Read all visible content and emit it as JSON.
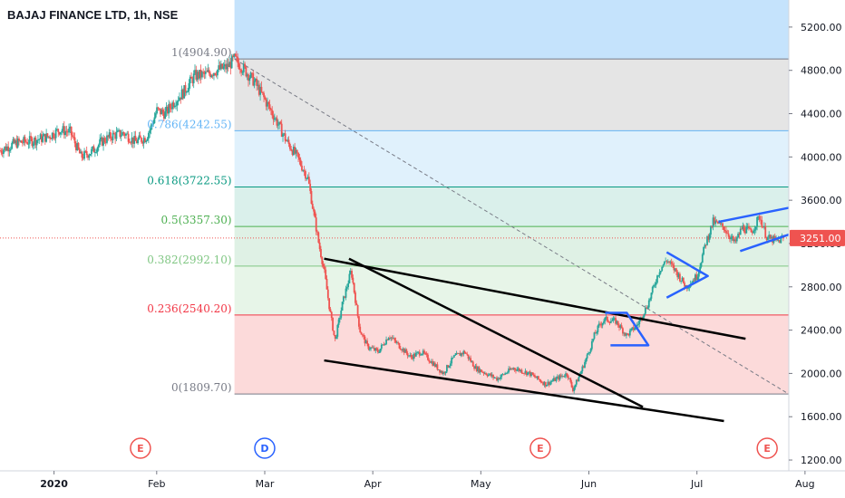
{
  "symbol_title": "BAJAJ FINANCE LTD, 1h, NSE",
  "colors": {
    "candle_up": "#26a69a",
    "candle_down": "#ef5350",
    "pattern_blue": "#2962ff",
    "trendline": "#000000",
    "price_line": "#ef5350",
    "price_badge": "#ef5350"
  },
  "chart_data": {
    "type": "candlestick",
    "title": "BAJAJ FINANCE LTD, 1h, NSE",
    "ylim": [
      1100,
      5450
    ],
    "y_ticks": [
      "5200.00",
      "4800.00",
      "4400.00",
      "4000.00",
      "3600.00",
      "3200.00",
      "2800.00",
      "2400.00",
      "2000.00",
      "1600.00",
      "1200.00"
    ],
    "x_ticks": [
      "2020",
      "Feb",
      "Mar",
      "Apr",
      "May",
      "Jun",
      "Jul",
      "Aug"
    ],
    "x_tick_positions": [
      0.05,
      1.0,
      2.0,
      3.0,
      4.0,
      5.0,
      6.0,
      7.0
    ],
    "xlim": [
      -0.45,
      6.85
    ],
    "current_price": {
      "value": 3251,
      "label": "3251.00"
    },
    "price_path": [
      [
        -0.45,
        4060
      ],
      [
        -0.3,
        4130
      ],
      [
        -0.15,
        4150
      ],
      [
        0.0,
        4190
      ],
      [
        0.1,
        4250
      ],
      [
        0.2,
        4230
      ],
      [
        0.3,
        4000
      ],
      [
        0.4,
        4050
      ],
      [
        0.5,
        4150
      ],
      [
        0.6,
        4200
      ],
      [
        0.7,
        4220
      ],
      [
        0.8,
        4140
      ],
      [
        0.9,
        4180
      ],
      [
        0.95,
        4280
      ],
      [
        1.0,
        4430
      ],
      [
        1.08,
        4400
      ],
      [
        1.15,
        4500
      ],
      [
        1.25,
        4600
      ],
      [
        1.35,
        4750
      ],
      [
        1.45,
        4760
      ],
      [
        1.55,
        4800
      ],
      [
        1.65,
        4830
      ],
      [
        1.72,
        4905
      ],
      [
        1.8,
        4820
      ],
      [
        1.9,
        4700
      ],
      [
        2.0,
        4530
      ],
      [
        2.1,
        4350
      ],
      [
        2.2,
        4150
      ],
      [
        2.3,
        4000
      ],
      [
        2.4,
        3800
      ],
      [
        2.45,
        3500
      ],
      [
        2.5,
        3200
      ],
      [
        2.55,
        2950
      ],
      [
        2.6,
        2600
      ],
      [
        2.65,
        2300
      ],
      [
        2.72,
        2650
      ],
      [
        2.8,
        2950
      ],
      [
        2.88,
        2400
      ],
      [
        2.95,
        2250
      ],
      [
        3.05,
        2200
      ],
      [
        3.15,
        2350
      ],
      [
        3.25,
        2250
      ],
      [
        3.35,
        2150
      ],
      [
        3.45,
        2200
      ],
      [
        3.55,
        2100
      ],
      [
        3.65,
        2000
      ],
      [
        3.75,
        2150
      ],
      [
        3.85,
        2200
      ],
      [
        3.95,
        2050
      ],
      [
        4.05,
        2000
      ],
      [
        4.15,
        1950
      ],
      [
        4.3,
        2050
      ],
      [
        4.45,
        2000
      ],
      [
        4.6,
        1900
      ],
      [
        4.7,
        1950
      ],
      [
        4.8,
        2000
      ],
      [
        4.85,
        1850
      ],
      [
        4.9,
        1950
      ],
      [
        5.0,
        2200
      ],
      [
        5.05,
        2350
      ],
      [
        5.1,
        2450
      ],
      [
        5.15,
        2500
      ],
      [
        5.25,
        2480
      ],
      [
        5.35,
        2350
      ],
      [
        5.45,
        2450
      ],
      [
        5.55,
        2650
      ],
      [
        5.6,
        2800
      ],
      [
        5.65,
        2950
      ],
      [
        5.72,
        3050
      ],
      [
        5.8,
        2950
      ],
      [
        5.9,
        2800
      ],
      [
        6.0,
        2900
      ],
      [
        6.08,
        3200
      ],
      [
        6.15,
        3400
      ],
      [
        6.25,
        3350
      ],
      [
        6.35,
        3200
      ],
      [
        6.42,
        3350
      ],
      [
        6.5,
        3300
      ],
      [
        6.58,
        3450
      ],
      [
        6.65,
        3250
      ],
      [
        6.75,
        3220
      ],
      [
        6.8,
        3251
      ]
    ],
    "fibonacci": {
      "levels": [
        {
          "label": "1(4904.90)",
          "value": 4904.9,
          "color": "#787b86"
        },
        {
          "label": "0.786(4242.55)",
          "value": 4242.55,
          "color": "#64b5f6"
        },
        {
          "label": "0.618(3722.55)",
          "value": 3722.55,
          "color": "#089981"
        },
        {
          "label": "0.5(3357.30)",
          "value": 3357.3,
          "color": "#4caf50"
        },
        {
          "label": "0.382(2992.10)",
          "value": 2992.1,
          "color": "#81c784"
        },
        {
          "label": "0.236(2540.20)",
          "value": 2540.2,
          "color": "#f23645"
        },
        {
          "label": "0(1809.70)",
          "value": 1809.7,
          "color": "#787b86"
        }
      ],
      "x_range": [
        1.72,
        6.85
      ],
      "bands": [
        {
          "from": 4904.9,
          "to": 5450,
          "color": "#bbdefb"
        },
        {
          "from": 4242.55,
          "to": 4904.9,
          "color": "#e0e0e0"
        },
        {
          "from": 3722.55,
          "to": 4242.55,
          "color": "#dbeefc"
        },
        {
          "from": 3357.3,
          "to": 3722.55,
          "color": "#d3ede8"
        },
        {
          "from": 2992.1,
          "to": 3357.3,
          "color": "#d9efe0"
        },
        {
          "from": 2540.2,
          "to": 2992.1,
          "color": "#e3f3e4"
        },
        {
          "from": 1809.7,
          "to": 2540.2,
          "color": "#fbd3d4"
        }
      ],
      "trend_line": [
        [
          1.72,
          4904.9
        ],
        [
          6.85,
          1809.7
        ]
      ]
    },
    "trendlines_black": [
      [
        [
          2.55,
          3060
        ],
        [
          6.45,
          2320
        ]
      ],
      [
        [
          2.78,
          3060
        ],
        [
          5.5,
          1690
        ]
      ],
      [
        [
          2.55,
          2120
        ],
        [
          6.25,
          1560
        ]
      ]
    ],
    "patterns_blue": [
      [
        [
          5.15,
          2560
        ],
        [
          5.35,
          2560
        ],
        [
          5.55,
          2260
        ],
        [
          5.2,
          2260
        ]
      ],
      [
        [
          5.72,
          3120
        ],
        [
          6.1,
          2900
        ],
        [
          5.72,
          2700
        ]
      ],
      [
        [
          6.2,
          3400
        ],
        [
          6.9,
          3540
        ]
      ],
      [
        [
          6.4,
          3130
        ],
        [
          6.9,
          3300
        ]
      ]
    ],
    "events": [
      {
        "label": "E",
        "x": 0.85,
        "color": "#ef5350"
      },
      {
        "label": "D",
        "x": 2.0,
        "color": "#2962ff"
      },
      {
        "label": "E",
        "x": 4.55,
        "color": "#ef5350"
      },
      {
        "label": "E",
        "x": 6.65,
        "color": "#ef5350"
      }
    ]
  }
}
